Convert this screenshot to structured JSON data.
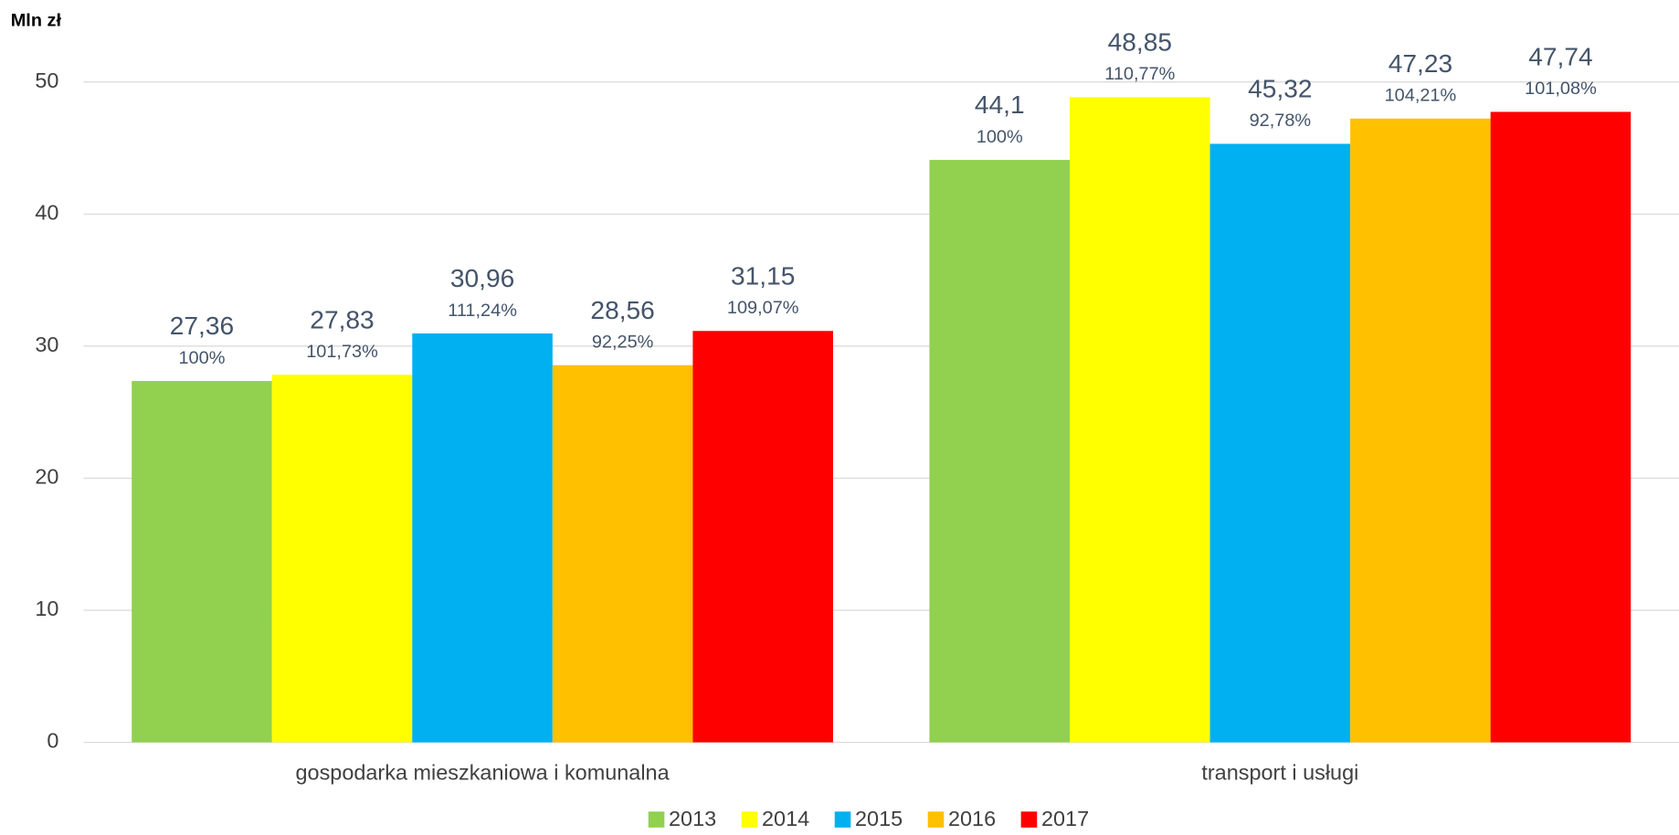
{
  "chart_data": {
    "type": "bar",
    "y_label": "Mln zł",
    "categories": [
      "gospodarka mieszkaniowa i komunalna",
      "transport i usługi"
    ],
    "ylim": [
      0,
      50
    ],
    "yticks": [
      0,
      10,
      20,
      30,
      40,
      50
    ],
    "grid": true,
    "legend": "bottom",
    "series": [
      {
        "name": "2013",
        "color": "#92d050",
        "values": [
          27.36,
          44.1
        ],
        "value_labels": [
          "27,36",
          "44,1"
        ],
        "percent_labels": [
          "100%",
          "100%"
        ]
      },
      {
        "name": "2014",
        "color": "#ffff00",
        "values": [
          27.83,
          48.85
        ],
        "value_labels": [
          "27,83",
          "48,85"
        ],
        "percent_labels": [
          "101,73%",
          "110,77%"
        ]
      },
      {
        "name": "2015",
        "color": "#00b0f0",
        "values": [
          30.96,
          45.32
        ],
        "value_labels": [
          "30,96",
          "45,32"
        ],
        "percent_labels": [
          "111,24%",
          "92,78%"
        ]
      },
      {
        "name": "2016",
        "color": "#ffc000",
        "values": [
          28.56,
          47.23
        ],
        "value_labels": [
          "28,56",
          "47,23"
        ],
        "percent_labels": [
          "92,25%",
          "104,21%"
        ]
      },
      {
        "name": "2017",
        "color": "#ff0000",
        "values": [
          31.15,
          47.74
        ],
        "value_labels": [
          "31,15",
          "47,74"
        ],
        "percent_labels": [
          "109,07%",
          "101,08%"
        ]
      }
    ]
  }
}
